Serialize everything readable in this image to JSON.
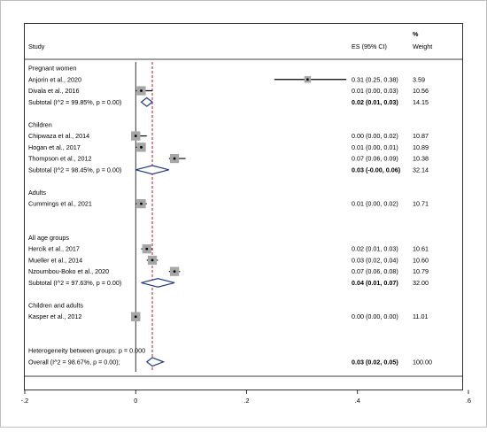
{
  "chart_data": {
    "type": "forest",
    "header": {
      "study": "Study",
      "es": "ES (95% CI)",
      "weight_pct": "%",
      "weight": "Weight"
    },
    "xaxis": {
      "ticks": [
        -0.2,
        0,
        0.2,
        0.4,
        0.6
      ],
      "tick_labels": [
        "-.2",
        "0",
        ".2",
        ".4",
        ".6"
      ],
      "xlim": [
        -0.2,
        0.6
      ]
    },
    "reference_line": 0,
    "overall_line": 0.03,
    "rows": [
      {
        "kind": "group",
        "label": "Pregnant women"
      },
      {
        "kind": "study",
        "label": "Anjorin et al., 2020",
        "es": 0.31,
        "lo": 0.25,
        "hi": 0.38,
        "es_text": "0.31 (0.25, 0.38)",
        "weight": "3.59"
      },
      {
        "kind": "study",
        "label": "Divala et al., 2016",
        "es": 0.01,
        "lo": 0.0,
        "hi": 0.03,
        "es_text": "0.01 (0.00, 0.03)",
        "weight": "10.56"
      },
      {
        "kind": "subtotal",
        "label": "Subtotal  (I^2 = 99.85%, p = 0.00)",
        "es": 0.02,
        "lo": 0.01,
        "hi": 0.03,
        "es_text": "0.02 (0.01, 0.03)",
        "weight": "14.15"
      },
      {
        "kind": "gap"
      },
      {
        "kind": "group",
        "label": "Children"
      },
      {
        "kind": "study",
        "label": "Chipwaza et al., 2014",
        "es": 0.0,
        "lo": 0.0,
        "hi": 0.02,
        "es_text": "0.00 (0.00, 0.02)",
        "weight": "10.87"
      },
      {
        "kind": "study",
        "label": "Hogan et al., 2017",
        "es": 0.01,
        "lo": 0.0,
        "hi": 0.01,
        "es_text": "0.01 (0.00, 0.01)",
        "weight": "10.89"
      },
      {
        "kind": "study",
        "label": "Thompson et al., 2012",
        "es": 0.07,
        "lo": 0.06,
        "hi": 0.09,
        "es_text": "0.07 (0.06, 0.09)",
        "weight": "10.38"
      },
      {
        "kind": "subtotal",
        "label": "Subtotal  (I^2 = 98.45%, p = 0.00)",
        "es": 0.03,
        "lo": -0.0,
        "hi": 0.06,
        "es_text": "0.03 (-0.00, 0.06)",
        "weight": "32.14"
      },
      {
        "kind": "gap"
      },
      {
        "kind": "group",
        "label": "Adults"
      },
      {
        "kind": "study",
        "label": "Cummings et al., 2021",
        "es": 0.01,
        "lo": 0.0,
        "hi": 0.02,
        "es_text": "0.01 (0.00, 0.02)",
        "weight": "10.71"
      },
      {
        "kind": "gap"
      },
      {
        "kind": "gap"
      },
      {
        "kind": "group",
        "label": "All age groups"
      },
      {
        "kind": "study",
        "label": "Hercik et al., 2017",
        "es": 0.02,
        "lo": 0.01,
        "hi": 0.03,
        "es_text": "0.02 (0.01, 0.03)",
        "weight": "10.61"
      },
      {
        "kind": "study",
        "label": "Mueller et al., 2014",
        "es": 0.03,
        "lo": 0.02,
        "hi": 0.04,
        "es_text": "0.03 (0.02, 0.04)",
        "weight": "10.60"
      },
      {
        "kind": "study",
        "label": "Nzoumbou-Boko et al., 2020",
        "es": 0.07,
        "lo": 0.06,
        "hi": 0.08,
        "es_text": "0.07 (0.06, 0.08)",
        "weight": "10.79"
      },
      {
        "kind": "subtotal",
        "label": "Subtotal  (I^2 = 97.63%, p = 0.00)",
        "es": 0.04,
        "lo": 0.01,
        "hi": 0.07,
        "es_text": "0.04 (0.01, 0.07)",
        "weight": "32.00"
      },
      {
        "kind": "gap"
      },
      {
        "kind": "group",
        "label": "Children and adults"
      },
      {
        "kind": "study",
        "label": "Kasper et al., 2012",
        "es": 0.0,
        "lo": 0.0,
        "hi": 0.0,
        "es_text": "0.00 (0.00, 0.00)",
        "weight": "11.01"
      },
      {
        "kind": "gap"
      },
      {
        "kind": "gap"
      },
      {
        "kind": "note",
        "label": "Heterogeneity between groups: p = 0.000"
      },
      {
        "kind": "overall",
        "label": "Overall  (I^2 = 98.67%, p = 0.00);",
        "es": 0.03,
        "lo": 0.02,
        "hi": 0.05,
        "es_text": "0.03 (0.02, 0.05)",
        "weight": "100.00"
      }
    ]
  }
}
